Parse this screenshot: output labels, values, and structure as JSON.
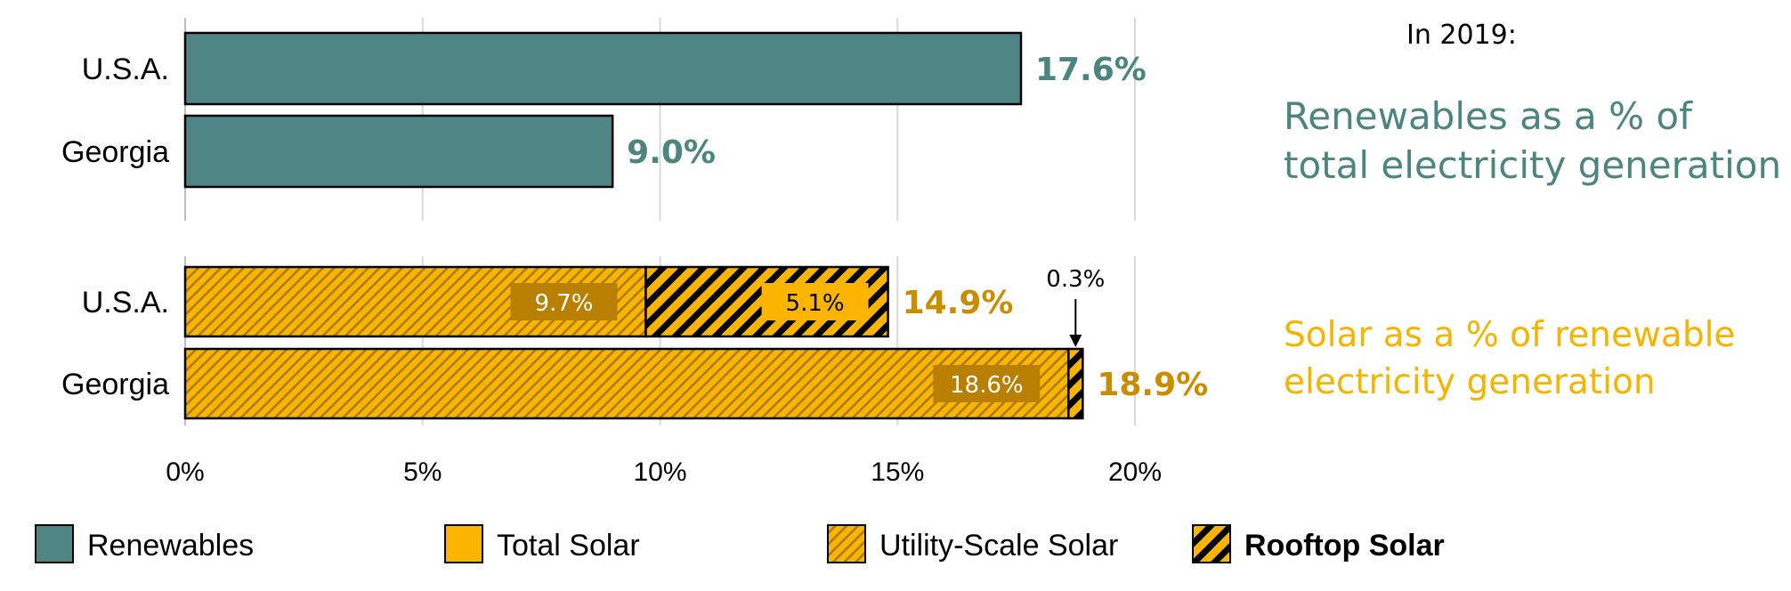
{
  "colors": {
    "renewables": "#4f8585",
    "renewables_text": "#4a857f",
    "solar": "#fbb400",
    "solar_text": "#c98e00",
    "solar_caption": "#f5b400",
    "label_box": "#b87f00",
    "grid": "#d9d9d9"
  },
  "side_text": {
    "year": "In 2019:",
    "renewables_caption": "Renewables as a % of total electricity generation",
    "solar_caption": "Solar as a % of renewable electricity generation"
  },
  "chart_data": [
    {
      "type": "bar",
      "orientation": "horizontal",
      "categories": [
        "U.S.A.",
        "Georgia"
      ],
      "series": [
        {
          "name": "Renewables",
          "values": [
            17.6,
            9.0
          ]
        }
      ],
      "value_labels": [
        "17.6%",
        "9.0%"
      ],
      "xlim": [
        0,
        20
      ],
      "grid": true
    },
    {
      "type": "bar",
      "orientation": "horizontal",
      "stacked": true,
      "categories": [
        "U.S.A.",
        "Georgia"
      ],
      "series": [
        {
          "name": "Utility-Scale Solar",
          "values": [
            9.7,
            18.6
          ],
          "labels": [
            "9.7%",
            "18.6%"
          ]
        },
        {
          "name": "Rooftop Solar",
          "values": [
            5.1,
            0.3
          ],
          "labels": [
            "5.1%",
            "0.3%"
          ]
        }
      ],
      "totals": [
        14.9,
        18.9
      ],
      "total_labels": [
        "14.9%",
        "18.9%"
      ],
      "xlim": [
        0,
        20
      ],
      "xticks": [
        "0%",
        "5%",
        "10%",
        "15%",
        "20%"
      ],
      "grid": true
    }
  ],
  "legend": [
    {
      "name": "Renewables",
      "pattern": "renewables"
    },
    {
      "name": "Total Solar",
      "pattern": "solid-solar"
    },
    {
      "name": "Utility-Scale Solar",
      "pattern": "utility"
    },
    {
      "name": "Rooftop Solar",
      "pattern": "rooftop"
    }
  ]
}
